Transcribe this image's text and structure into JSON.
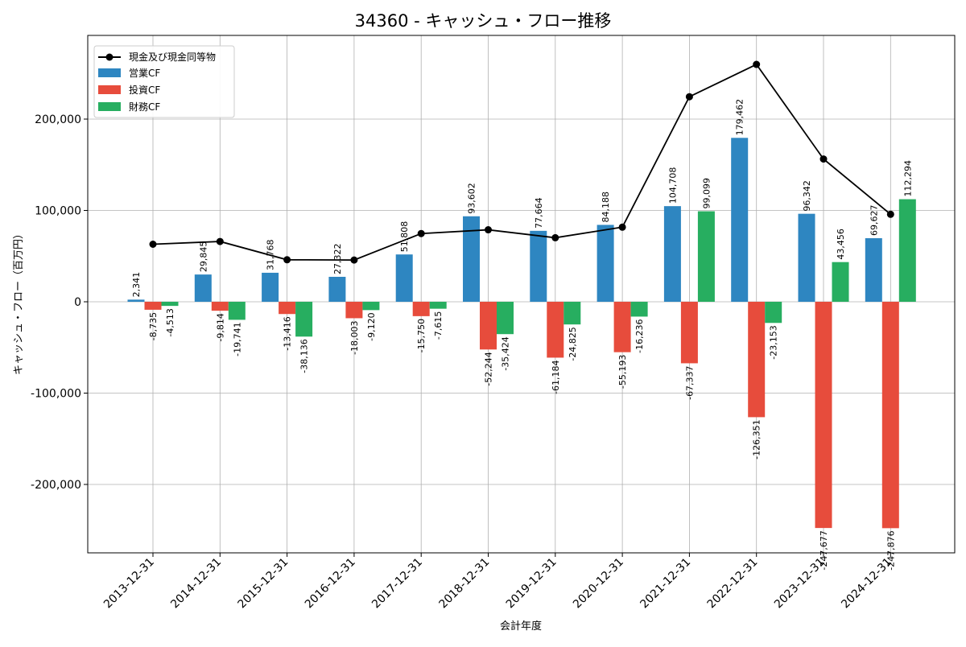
{
  "chart_data": {
    "type": "bar",
    "title": "34360 - キャッシュ・フロー推移",
    "xlabel": "会計年度",
    "ylabel": "キャッシュ・フロー（百万円）",
    "ylim": [
      -275000,
      275000
    ],
    "yticks": [
      -200000,
      -100000,
      0,
      100000,
      200000
    ],
    "ytick_labels": [
      "-200,000",
      "-100,000",
      "0",
      "100,000",
      "200,000"
    ],
    "grid": true,
    "legend_position": "top-left",
    "categories": [
      "2013-12-31",
      "2014-12-31",
      "2015-12-31",
      "2016-12-31",
      "2017-12-31",
      "2018-12-31",
      "2019-12-31",
      "2020-12-31",
      "2021-12-31",
      "2022-12-31",
      "2023-12-31",
      "2024-12-31"
    ],
    "series": [
      {
        "name": "営業CF",
        "kind": "bar",
        "color": "#2E86C1",
        "values": [
          2341,
          29845,
          31768,
          27322,
          51808,
          93602,
          77664,
          84188,
          104708,
          179462,
          96342,
          69627
        ],
        "labels": [
          "2,341",
          "29,845",
          "31,768",
          "27,322",
          "51,808",
          "93,602",
          "77,664",
          "84,188",
          "104,708",
          "179,462",
          "96,342",
          "69,627"
        ]
      },
      {
        "name": "投資CF",
        "kind": "bar",
        "color": "#E74C3C",
        "values": [
          -8735,
          -9814,
          -13416,
          -18003,
          -15750,
          -52244,
          -61184,
          -55193,
          -67337,
          -126351,
          -247677,
          -247876
        ],
        "labels": [
          "-8,735",
          "-9,814",
          "-13,416",
          "-18,003",
          "-15,750",
          "-52,244",
          "-61,184",
          "-55,193",
          "-67,337",
          "-126,351",
          "-247,677",
          "-247,876"
        ]
      },
      {
        "name": "財務CF",
        "kind": "bar",
        "color": "#27AE60",
        "values": [
          -4513,
          -19741,
          -38136,
          -9120,
          -7615,
          -35424,
          -24825,
          -16236,
          99099,
          -23153,
          43456,
          112294
        ],
        "labels": [
          "-4,513",
          "-19,741",
          "-38,136",
          "-9,120",
          "-7,615",
          "-35,424",
          "-24,825",
          "-16,236",
          "99,099",
          "-23,153",
          "43,456",
          "112,294"
        ]
      },
      {
        "name": "現金及び現金同等物",
        "kind": "line",
        "color": "#000000",
        "values": [
          63000,
          66000,
          46000,
          45700,
          74700,
          78800,
          70100,
          81700,
          224500,
          259900,
          156300,
          95800
        ]
      }
    ]
  }
}
